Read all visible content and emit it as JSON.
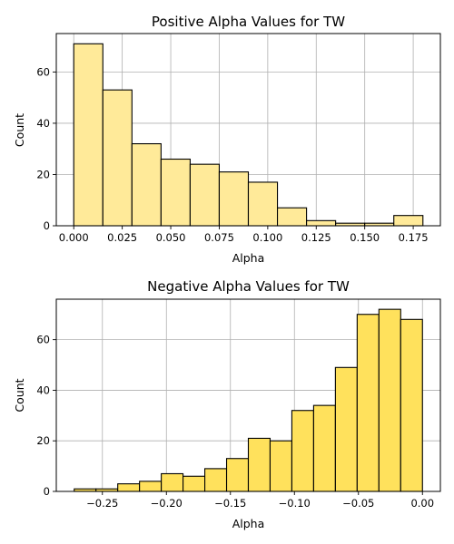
{
  "chart_data": [
    {
      "type": "bar",
      "subtype": "histogram",
      "title": "Positive Alpha Values for TW",
      "xlabel": "Alpha",
      "ylabel": "Count",
      "bin_edges": [
        0.0,
        0.015,
        0.03,
        0.045,
        0.06,
        0.075,
        0.09,
        0.105,
        0.12,
        0.135,
        0.15,
        0.165,
        0.18
      ],
      "values": [
        71,
        53,
        32,
        26,
        24,
        21,
        17,
        7,
        2,
        1,
        1,
        4
      ],
      "xlim": [
        -0.009,
        0.189
      ],
      "ylim": [
        0,
        75
      ],
      "xticks": [
        0.0,
        0.025,
        0.05,
        0.075,
        0.1,
        0.125,
        0.15,
        0.175
      ],
      "xtick_labels": [
        "0.000",
        "0.025",
        "0.050",
        "0.075",
        "0.100",
        "0.125",
        "0.150",
        "0.175"
      ],
      "yticks": [
        0,
        20,
        40,
        60
      ],
      "ytick_labels": [
        "0",
        "20",
        "40",
        "60"
      ],
      "grid": true,
      "bar_color": "#FFEA99",
      "edge_color": "#000000"
    },
    {
      "type": "bar",
      "subtype": "histogram",
      "title": "Negative Alpha Values for TW",
      "xlabel": "Alpha",
      "ylabel": "Count",
      "bin_edges": [
        -0.272,
        -0.255,
        -0.238,
        -0.221,
        -0.204,
        -0.187,
        -0.17,
        -0.153,
        -0.136,
        -0.119,
        -0.102,
        -0.085,
        -0.068,
        -0.051,
        -0.034,
        -0.017,
        0.0
      ],
      "values": [
        1,
        1,
        3,
        4,
        7,
        6,
        9,
        13,
        21,
        20,
        32,
        34,
        49,
        70,
        72,
        68
      ],
      "xlim": [
        -0.286,
        0.014
      ],
      "ylim": [
        0,
        76
      ],
      "xticks": [
        -0.25,
        -0.2,
        -0.15,
        -0.1,
        -0.05,
        0.0
      ],
      "xtick_labels": [
        "−0.25",
        "−0.20",
        "−0.15",
        "−0.10",
        "−0.05",
        "0.00"
      ],
      "yticks": [
        0,
        20,
        40,
        60
      ],
      "ytick_labels": [
        "0",
        "20",
        "40",
        "60"
      ],
      "grid": true,
      "bar_color": "#FFE15C",
      "edge_color": "#000000"
    }
  ]
}
